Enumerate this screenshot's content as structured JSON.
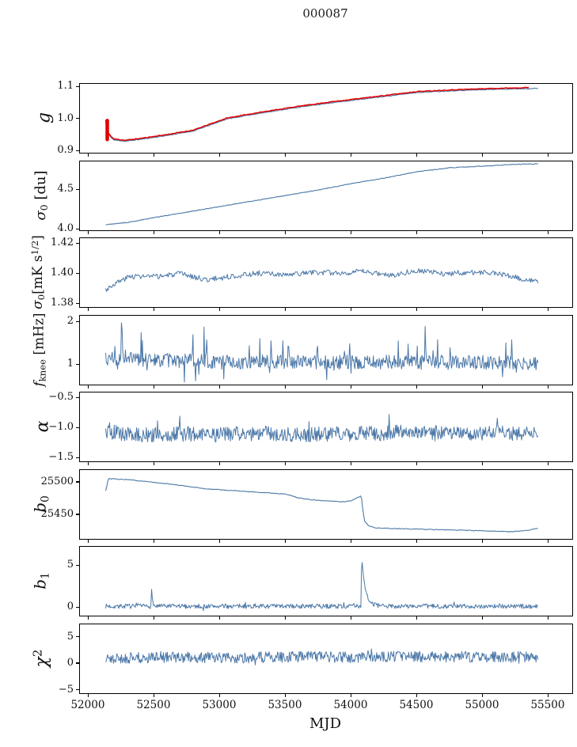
{
  "title": "000087",
  "x_axis": {
    "label": "MJD",
    "lim": [
      51934,
      55681
    ],
    "ticks": [
      52000,
      52500,
      53000,
      53500,
      54000,
      54500,
      55000,
      55500
    ],
    "tick_labels": [
      "52000",
      "52500",
      "53000",
      "53500",
      "54000",
      "54500",
      "55000",
      "55500"
    ]
  },
  "colors": {
    "line_blue": "#4c78a8",
    "line_red": "#e00000",
    "axis": "#000000"
  },
  "chart_data": [
    {
      "name": "g",
      "type": "line",
      "ylabel_parts": [
        {
          "t": "g",
          "i": true
        }
      ],
      "ylabel_fontsize": 22,
      "ylabel_x": 56,
      "ylim": [
        0.8926,
        1.1074
      ],
      "yticks": [
        0.9,
        1.0,
        1.1
      ],
      "ytick_labels": [
        "0.9",
        "1.0",
        "1.1"
      ],
      "series": [
        {
          "color": "blue",
          "lw": 1.1,
          "x0": 52130,
          "x1": 55420,
          "n": 460,
          "noise": 0.0012,
          "seed": 11,
          "offset": -0.0015,
          "trend": [
            [
              52130,
              0.993
            ],
            [
              52150,
              0.952
            ],
            [
              52190,
              0.934
            ],
            [
              52280,
              0.93
            ],
            [
              52400,
              0.936
            ],
            [
              52600,
              0.948
            ],
            [
              52800,
              0.962
            ],
            [
              53050,
              0.999
            ],
            [
              53300,
              1.017
            ],
            [
              53600,
              1.036
            ],
            [
              53850,
              1.05
            ],
            [
              54140,
              1.064
            ],
            [
              54300,
              1.072
            ],
            [
              54500,
              1.082
            ],
            [
              54800,
              1.088
            ],
            [
              55100,
              1.092
            ],
            [
              55420,
              1.095
            ]
          ]
        },
        {
          "color": "red",
          "lw": 1.5,
          "x0": 52130,
          "x1": 55350,
          "n": 460,
          "noise": 0.0012,
          "seed": 11,
          "offset": 0.0015,
          "trend": [
            [
              52130,
              0.993
            ],
            [
              52150,
              0.952
            ],
            [
              52190,
              0.934
            ],
            [
              52280,
              0.93
            ],
            [
              52400,
              0.936
            ],
            [
              52600,
              0.948
            ],
            [
              52800,
              0.962
            ],
            [
              53050,
              0.999
            ],
            [
              53300,
              1.017
            ],
            [
              53600,
              1.036
            ],
            [
              53850,
              1.05
            ],
            [
              54140,
              1.064
            ],
            [
              54300,
              1.072
            ],
            [
              54500,
              1.082
            ],
            [
              54800,
              1.088
            ],
            [
              55100,
              1.092
            ],
            [
              55420,
              1.095
            ]
          ]
        }
      ],
      "extras": [
        {
          "kind": "vline",
          "x": 52142,
          "y0": 0.934,
          "y1": 0.993,
          "width": 4.5,
          "color": "red"
        }
      ]
    },
    {
      "name": "sigma0_du",
      "type": "line",
      "ylabel_parts": [
        {
          "t": "σ",
          "i": true
        },
        {
          "t": "0",
          "sub": true
        },
        {
          "t": " [du]"
        }
      ],
      "ylabel_fontsize": 18,
      "ylabel_x": 52,
      "ylim": [
        3.98,
        4.85
      ],
      "yticks": [
        4.0,
        4.5
      ],
      "ytick_labels": [
        "4.0",
        "4.5"
      ],
      "series": [
        {
          "color": "blue",
          "lw": 1.1,
          "x0": 52130,
          "x1": 55420,
          "n": 460,
          "noise": 0.004,
          "seed": 2,
          "trend": [
            [
              52130,
              4.05
            ],
            [
              52300,
              4.08
            ],
            [
              52500,
              4.14
            ],
            [
              52750,
              4.21
            ],
            [
              53000,
              4.28
            ],
            [
              53250,
              4.35
            ],
            [
              53500,
              4.42
            ],
            [
              53750,
              4.49
            ],
            [
              54000,
              4.57
            ],
            [
              54250,
              4.64
            ],
            [
              54500,
              4.72
            ],
            [
              54750,
              4.77
            ],
            [
              55000,
              4.79
            ],
            [
              55200,
              4.81
            ],
            [
              55420,
              4.82
            ]
          ]
        }
      ]
    },
    {
      "name": "sigma0_mK",
      "type": "line",
      "ylabel_parts": [
        {
          "t": "σ",
          "i": true
        },
        {
          "t": "0",
          "sub": true
        },
        {
          "t": "[mK s"
        },
        {
          "t": "1/2",
          "sup": true
        },
        {
          "t": "]"
        }
      ],
      "ylabel_fontsize": 17,
      "ylabel_x": 48,
      "ylim": [
        1.3774,
        1.4232
      ],
      "yticks": [
        1.38,
        1.4,
        1.42
      ],
      "ytick_labels": [
        "1.38",
        "1.40",
        "1.42"
      ],
      "series": [
        {
          "color": "blue",
          "lw": 1.0,
          "x0": 52130,
          "x1": 55420,
          "n": 520,
          "noise": 0.0018,
          "seed": 3,
          "trend": [
            [
              52130,
              1.389
            ],
            [
              52200,
              1.393
            ],
            [
              52320,
              1.398
            ],
            [
              52500,
              1.3975
            ],
            [
              52700,
              1.3995
            ],
            [
              52900,
              1.3955
            ],
            [
              53100,
              1.398
            ],
            [
              53300,
              1.4
            ],
            [
              53500,
              1.3985
            ],
            [
              53700,
              1.4005
            ],
            [
              53900,
              1.4
            ],
            [
              54100,
              1.401
            ],
            [
              54300,
              1.3985
            ],
            [
              54500,
              1.402
            ],
            [
              54700,
              1.3995
            ],
            [
              54900,
              1.4005
            ],
            [
              55100,
              1.4
            ],
            [
              55250,
              1.397
            ],
            [
              55420,
              1.394
            ]
          ]
        }
      ]
    },
    {
      "name": "f_knee",
      "type": "line",
      "ylabel_parts": [
        {
          "t": "f",
          "i": true
        },
        {
          "t": "knee",
          "sub": true
        },
        {
          "t": " [mHz]"
        }
      ],
      "ylabel_fontsize": 17,
      "ylabel_x": 50,
      "ylim": [
        0.52,
        2.13
      ],
      "yticks": [
        1,
        2
      ],
      "ytick_labels": [
        "1",
        "2"
      ],
      "series": [
        {
          "color": "blue",
          "lw": 1.0,
          "x0": 52130,
          "x1": 55420,
          "n": 660,
          "noise": 0.17,
          "seed": 4,
          "random_spikes": {
            "prob": 0.05,
            "max": 0.65
          },
          "spikes": [
            [
              52250,
              1.05,
              3
            ],
            [
              53520,
              0.6,
              3
            ],
            [
              54430,
              0.75,
              3
            ],
            [
              54560,
              1.1,
              3
            ]
          ],
          "trend": [
            [
              52130,
              1.12
            ],
            [
              52600,
              1.08
            ],
            [
              53200,
              1.05
            ],
            [
              54000,
              1.05
            ],
            [
              55420,
              1.03
            ]
          ]
        }
      ]
    },
    {
      "name": "alpha",
      "type": "line",
      "ylabel_parts": [
        {
          "t": "α",
          "i": true
        }
      ],
      "ylabel_fontsize": 22,
      "ylabel_x": 54,
      "ylim": [
        -1.566,
        -0.42
      ],
      "yticks": [
        -1.5,
        -1.0,
        -0.5
      ],
      "ytick_labels": [
        "−1.5",
        "−1.0",
        "−0.5"
      ],
      "series": [
        {
          "color": "blue",
          "lw": 1.0,
          "x0": 52130,
          "x1": 55420,
          "n": 660,
          "noise": 0.125,
          "seed": 5,
          "random_spikes": {
            "prob": 0.02,
            "max": 0.25
          },
          "trend": [
            [
              52130,
              -1.07
            ],
            [
              52400,
              -1.13
            ],
            [
              52700,
              -1.11
            ],
            [
              53000,
              -1.12
            ],
            [
              53300,
              -1.1
            ],
            [
              53600,
              -1.12
            ],
            [
              53900,
              -1.11
            ],
            [
              54200,
              -1.1
            ],
            [
              54500,
              -1.07
            ],
            [
              54800,
              -1.11
            ],
            [
              55100,
              -1.1
            ],
            [
              55420,
              -1.1
            ]
          ]
        }
      ]
    },
    {
      "name": "b0",
      "type": "line",
      "ylabel_parts": [
        {
          "t": "b",
          "i": true
        },
        {
          "t": "0",
          "sub": true
        }
      ],
      "ylabel_fontsize": 20,
      "ylabel_x": 52,
      "ylim": [
        25412,
        25518
      ],
      "yticks": [
        25450,
        25500
      ],
      "ytick_labels": [
        "25450",
        "25500"
      ],
      "series": [
        {
          "color": "blue",
          "lw": 1.1,
          "x0": 52130,
          "x1": 55420,
          "n": 430,
          "noise": 0.5,
          "seed": 6,
          "trend": [
            [
              52130,
              25486
            ],
            [
              52135,
              25490
            ],
            [
              52150,
              25505
            ],
            [
              52300,
              25503
            ],
            [
              52450,
              25500
            ],
            [
              52600,
              25497
            ],
            [
              52750,
              25493
            ],
            [
              52900,
              25489
            ],
            [
              53050,
              25487
            ],
            [
              53200,
              25485
            ],
            [
              53350,
              25483
            ],
            [
              53500,
              25481
            ],
            [
              53600,
              25475
            ],
            [
              53700,
              25472
            ],
            [
              53850,
              25470
            ],
            [
              53950,
              25469
            ],
            [
              54000,
              25471
            ],
            [
              54050,
              25476
            ],
            [
              54075,
              25479
            ],
            [
              54085,
              25460
            ],
            [
              54100,
              25440
            ],
            [
              54130,
              25432
            ],
            [
              54180,
              25429
            ],
            [
              54300,
              25428
            ],
            [
              54500,
              25427
            ],
            [
              54700,
              25426
            ],
            [
              54900,
              25425
            ],
            [
              55100,
              25424
            ],
            [
              55200,
              25423
            ],
            [
              55300,
              25424
            ],
            [
              55420,
              25428
            ]
          ]
        }
      ]
    },
    {
      "name": "b1",
      "type": "line",
      "ylabel_parts": [
        {
          "t": "b",
          "i": true
        },
        {
          "t": "1",
          "sub": true
        }
      ],
      "ylabel_fontsize": 20,
      "ylabel_x": 52,
      "ylim": [
        -1.04,
        7.17
      ],
      "yticks": [
        0,
        5
      ],
      "ytick_labels": [
        "0",
        "5"
      ],
      "series": [
        {
          "color": "blue",
          "lw": 1.0,
          "x0": 52130,
          "x1": 55420,
          "n": 660,
          "noise": 0.27,
          "seed": 7,
          "random_spikes": {
            "prob": 0.03,
            "max": 0.5
          },
          "spikes": [
            [
              52480,
              2.6,
              5
            ],
            [
              54078,
              6.0,
              28
            ]
          ],
          "trend": [
            [
              52130,
              0.08
            ],
            [
              55420,
              0.08
            ]
          ]
        }
      ]
    },
    {
      "name": "chi2",
      "type": "line",
      "ylabel_parts": [
        {
          "t": "χ",
          "i": true
        },
        {
          "t": "2",
          "sup": true
        }
      ],
      "ylabel_fontsize": 22,
      "ylabel_x": 52,
      "ylim": [
        -5.7,
        7.3
      ],
      "yticks": [
        -5,
        0,
        5
      ],
      "ytick_labels": [
        "−5",
        "0",
        "5"
      ],
      "series": [
        {
          "color": "blue",
          "lw": 1.0,
          "x0": 52130,
          "x1": 55420,
          "n": 660,
          "noise": 1.05,
          "seed": 8,
          "random_spikes": {
            "prob": 0.02,
            "max": 1.2
          },
          "trend": [
            [
              52130,
              0.9
            ],
            [
              52600,
              1.1
            ],
            [
              53100,
              1.0
            ],
            [
              53600,
              1.2
            ],
            [
              54000,
              1.1
            ],
            [
              54300,
              1.3
            ],
            [
              54700,
              1.1
            ],
            [
              55000,
              1.2
            ],
            [
              55420,
              1.1
            ]
          ]
        }
      ]
    }
  ]
}
